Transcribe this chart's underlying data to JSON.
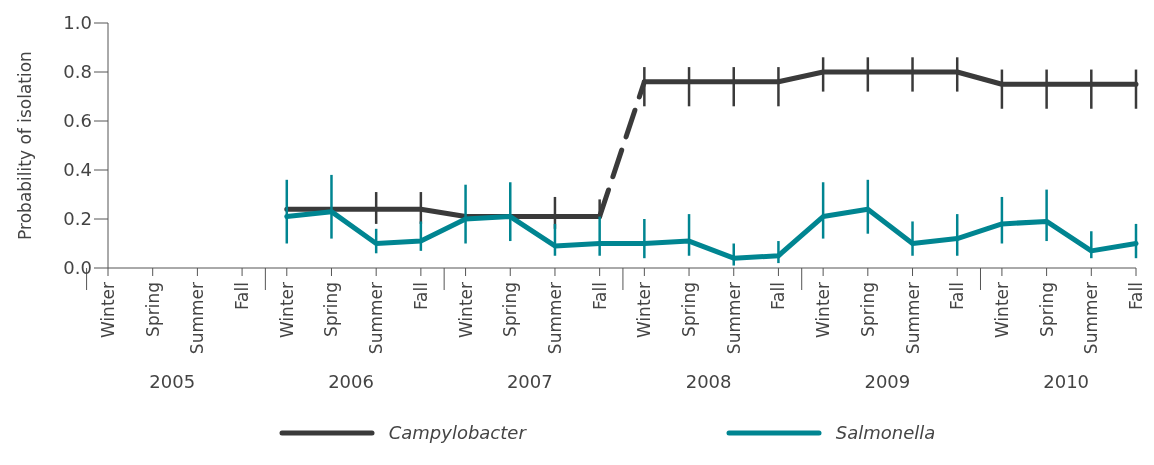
{
  "chart_data": {
    "type": "line",
    "ylabel": "Probability of isolation",
    "categories": [
      "Winter",
      "Spring",
      "Summer",
      "Fall",
      "Winter",
      "Spring",
      "Summer",
      "Fall",
      "Winter",
      "Spring",
      "Summer",
      "Fall",
      "Winter",
      "Spring",
      "Summer",
      "Fall",
      "Winter",
      "Spring",
      "Summer",
      "Fall",
      "Winter",
      "Spring",
      "Summer",
      "Fall"
    ],
    "annotations": [
      "2005",
      "2006",
      "2007",
      "2008",
      "2009",
      "2010"
    ],
    "ylim": [
      0,
      1
    ],
    "yticks": [
      {
        "value": 0,
        "label": "0.0"
      },
      {
        "value": 0.2,
        "label": "0.2"
      },
      {
        "value": 0.4,
        "label": "0.4"
      },
      {
        "value": 0.6,
        "label": "0.6"
      },
      {
        "value": 0.8,
        "label": "0.8"
      },
      {
        "value": 1,
        "label": "1.0"
      }
    ],
    "legend": "bottom",
    "marker": "none",
    "line_style": "solid",
    "series": [
      {
        "name": "Campylobacter",
        "color": "#3a3a3a",
        "values": [
          null,
          null,
          null,
          null,
          0.24,
          0.24,
          0.24,
          0.24,
          0.21,
          0.21,
          0.21,
          0.21,
          null,
          null,
          null,
          null,
          null,
          null,
          null,
          null,
          null,
          null,
          null,
          null
        ],
        "errors": [
          null,
          null,
          null,
          null,
          null,
          null,
          [
            0.18,
            0.31
          ],
          [
            0.18,
            0.31
          ],
          null,
          null,
          [
            0.16,
            0.29
          ],
          [
            0.21,
            0.28
          ],
          null,
          null,
          null,
          null,
          null,
          null,
          null,
          null,
          null,
          null,
          null,
          null
        ]
      },
      {
        "color": "#3a3a3a",
        "values": [
          null,
          null,
          null,
          null,
          null,
          null,
          null,
          null,
          null,
          null,
          null,
          null,
          0.76,
          0.76,
          0.76,
          0.76,
          0.8,
          0.8,
          0.8,
          0.8,
          0.75,
          0.75,
          0.75,
          0.75
        ],
        "errors": [
          null,
          null,
          null,
          null,
          null,
          null,
          null,
          null,
          null,
          null,
          null,
          null,
          [
            0.66,
            0.82
          ],
          [
            0.66,
            0.82
          ],
          [
            0.66,
            0.82
          ],
          [
            0.66,
            0.82
          ],
          [
            0.72,
            0.86
          ],
          [
            0.72,
            0.86
          ],
          [
            0.72,
            0.86
          ],
          [
            0.72,
            0.86
          ],
          [
            0.65,
            0.81
          ],
          [
            0.65,
            0.81
          ],
          [
            0.65,
            0.81
          ],
          [
            0.65,
            0.81
          ]
        ]
      },
      {
        "color": "#3a3a3a",
        "line_style": "dashed",
        "values": [
          null,
          null,
          null,
          null,
          null,
          null,
          null,
          null,
          null,
          null,
          null,
          0.21,
          0.76,
          null,
          null,
          null,
          null,
          null,
          null,
          null,
          null,
          null,
          null,
          null
        ]
      },
      {
        "name": "Salmonella",
        "color": "#008591",
        "values": [
          null,
          null,
          null,
          null,
          0.21,
          0.23,
          0.1,
          0.11,
          0.2,
          0.21,
          0.09,
          0.1,
          0.1,
          0.11,
          0.04,
          0.05,
          0.21,
          0.24,
          0.1,
          0.12,
          0.18,
          0.19,
          0.07,
          0.1
        ],
        "errors": [
          null,
          null,
          null,
          null,
          [
            0.1,
            0.36
          ],
          [
            0.12,
            0.38
          ],
          [
            0.06,
            0.16
          ],
          [
            0.07,
            0.19
          ],
          [
            0.1,
            0.34
          ],
          [
            0.11,
            0.35
          ],
          [
            0.05,
            0.18
          ],
          [
            0.05,
            0.21
          ],
          [
            0.04,
            0.2
          ],
          [
            0.05,
            0.22
          ],
          [
            0.01,
            0.1
          ],
          [
            0.02,
            0.11
          ],
          [
            0.12,
            0.35
          ],
          [
            0.14,
            0.36
          ],
          [
            0.05,
            0.19
          ],
          [
            0.05,
            0.22
          ],
          [
            0.1,
            0.29
          ],
          [
            0.11,
            0.32
          ],
          [
            0.04,
            0.15
          ],
          [
            0.04,
            0.18
          ]
        ]
      }
    ]
  }
}
